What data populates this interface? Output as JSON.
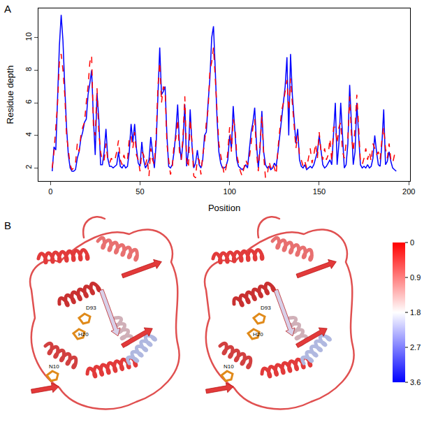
{
  "panel_labels": [
    "A",
    "B"
  ],
  "chart_data": {
    "type": "line",
    "x_label": "Position",
    "y_label": "Residue depth",
    "x": [
      1,
      2,
      3,
      4,
      5,
      6,
      7,
      8,
      9,
      10,
      11,
      12,
      13,
      14,
      15,
      16,
      17,
      18,
      19,
      20,
      21,
      22,
      23,
      24,
      25,
      26,
      27,
      28,
      29,
      30,
      31,
      32,
      33,
      34,
      35,
      36,
      37,
      38,
      39,
      40,
      41,
      42,
      43,
      44,
      45,
      46,
      47,
      48,
      49,
      50,
      51,
      52,
      53,
      54,
      55,
      56,
      57,
      58,
      59,
      60,
      61,
      62,
      63,
      64,
      65,
      66,
      67,
      68,
      69,
      70,
      71,
      72,
      73,
      74,
      75,
      76,
      77,
      78,
      79,
      80,
      81,
      82,
      83,
      84,
      85,
      86,
      87,
      88,
      89,
      90,
      91,
      92,
      93,
      94,
      95,
      96,
      97,
      98,
      99,
      100,
      101,
      102,
      103,
      104,
      105,
      106,
      107,
      108,
      109,
      110,
      111,
      112,
      113,
      114,
      115,
      116,
      117,
      118,
      119,
      120,
      121,
      122,
      123,
      124,
      125,
      126,
      127,
      128,
      129,
      130,
      131,
      132,
      133,
      134,
      135,
      136,
      137,
      138,
      139,
      140,
      141,
      142,
      143,
      144,
      145,
      146,
      147,
      148,
      149,
      150,
      151,
      152,
      153,
      154,
      155,
      156,
      157,
      158,
      159,
      160,
      161,
      162,
      163,
      164,
      165,
      166,
      167,
      168,
      169,
      170,
      171,
      172,
      173,
      174,
      175,
      176,
      177,
      178,
      179,
      180,
      181,
      182,
      183,
      184,
      185,
      186,
      187,
      188,
      189,
      190,
      191,
      192,
      193
    ],
    "series": [
      {
        "color": "#0000ff",
        "line_style": "solid",
        "values": [
          1.8,
          3.3,
          3.1,
          6.5,
          9.5,
          11.4,
          9.8,
          7.0,
          4.5,
          2.8,
          2.0,
          1.8,
          1.8,
          1.9,
          2.6,
          3.0,
          3.8,
          4.2,
          4.8,
          5.0,
          6.5,
          7.2,
          8.0,
          5.0,
          2.8,
          6.6,
          5.0,
          2.2,
          2.2,
          3.0,
          4.4,
          2.6,
          2.1,
          2.1,
          2.0,
          2.1,
          2.2,
          3.0,
          2.1,
          2.0,
          2.2,
          2.0,
          2.1,
          3.0,
          4.7,
          3.6,
          4.7,
          3.2,
          2.3,
          2.1,
          3.6,
          2.5,
          2.0,
          2.2,
          2.5,
          3.9,
          2.8,
          2.0,
          3.5,
          6.5,
          9.4,
          6.5,
          6.7,
          7.0,
          4.0,
          2.1,
          2.0,
          2.2,
          3.0,
          4.2,
          5.9,
          3.5,
          2.5,
          3.6,
          5.9,
          2.1,
          3.0,
          5.6,
          3.4,
          2.0,
          2.3,
          3.1,
          2.2,
          2.0,
          2.5,
          4.0,
          4.2,
          6.0,
          7.5,
          10.0,
          10.7,
          8.0,
          5.0,
          3.0,
          2.3,
          2.0,
          2.0,
          2.1,
          2.5,
          4.0,
          3.2,
          5.8,
          4.1,
          2.5,
          2.1,
          2.0,
          1.9,
          2.0,
          2.2,
          2.0,
          3.0,
          4.2,
          4.8,
          5.7,
          3.5,
          2.0,
          3.2,
          5.5,
          3.0,
          2.2,
          2.0,
          2.1,
          1.9,
          2.0,
          2.3,
          2.1,
          3.0,
          4.0,
          5.0,
          6.0,
          7.0,
          8.8,
          4.0,
          9.0,
          6.5,
          5.0,
          3.5,
          4.4,
          2.5,
          2.1,
          2.0,
          2.2,
          1.9,
          2.0,
          2.1,
          2.0,
          2.2,
          2.6,
          3.0,
          4.0,
          3.2,
          2.2,
          2.0,
          2.1,
          2.3,
          2.5,
          2.2,
          4.0,
          6.0,
          2.2,
          3.5,
          6.0,
          3.8,
          2.0,
          2.2,
          3.5,
          7.1,
          4.5,
          2.2,
          3.0,
          6.0,
          4.0,
          2.2,
          2.0,
          2.1,
          2.0,
          2.2,
          2.0,
          2.1,
          2.6,
          4.0,
          3.0,
          2.2,
          2.1,
          3.5,
          5.6,
          2.2,
          2.4,
          3.0,
          2.4,
          2.0,
          1.9,
          1.8
        ]
      },
      {
        "color": "#ff0000",
        "line_style": "dashed",
        "values": [
          2.0,
          3.0,
          4.5,
          6.0,
          8.5,
          9.0,
          8.0,
          6.5,
          4.0,
          3.0,
          2.2,
          1.9,
          2.0,
          2.3,
          3.5,
          3.0,
          4.0,
          4.5,
          4.8,
          6.0,
          7.0,
          8.5,
          8.9,
          4.5,
          4.0,
          6.9,
          4.2,
          3.0,
          2.4,
          2.5,
          3.5,
          2.5,
          2.3,
          2.6,
          2.4,
          2.5,
          3.0,
          3.7,
          2.5,
          2.2,
          2.8,
          2.4,
          2.5,
          3.8,
          4.0,
          3.2,
          4.2,
          2.8,
          2.5,
          1.8,
          3.0,
          2.8,
          2.2,
          2.6,
          1.5,
          3.2,
          2.5,
          2.2,
          4.0,
          7.0,
          8.5,
          6.0,
          7.0,
          6.8,
          3.5,
          2.5,
          1.6,
          2.0,
          3.5,
          3.8,
          5.0,
          3.0,
          2.5,
          4.0,
          6.4,
          2.5,
          2.0,
          5.0,
          3.6,
          1.5,
          1.4,
          2.6,
          2.5,
          1.6,
          2.8,
          3.5,
          4.8,
          5.6,
          8.0,
          8.5,
          9.4,
          7.5,
          5.4,
          3.5,
          2.8,
          2.2,
          1.6,
          2.0,
          3.0,
          4.5,
          3.0,
          5.0,
          4.5,
          2.8,
          2.3,
          1.8,
          1.5,
          2.0,
          2.5,
          2.2,
          2.6,
          3.5,
          4.5,
          5.0,
          3.0,
          1.8,
          3.5,
          5.2,
          2.8,
          1.4,
          1.5,
          2.4,
          2.0,
          2.3,
          2.0,
          1.6,
          3.2,
          4.5,
          5.5,
          6.0,
          6.8,
          7.4,
          5.5,
          7.5,
          6.0,
          4.5,
          3.2,
          4.0,
          2.8,
          2.5,
          2.1,
          2.4,
          2.0,
          2.6,
          3.2,
          2.3,
          2.8,
          3.5,
          2.6,
          4.2,
          3.0,
          2.5,
          3.2,
          2.5,
          2.8,
          3.8,
          2.4,
          4.5,
          4.5,
          3.5,
          4.5,
          4.8,
          3.0,
          2.6,
          3.5,
          3.8,
          6.4,
          4.0,
          3.0,
          4.5,
          6.5,
          4.5,
          2.4,
          2.2,
          2.6,
          3.2,
          2.5,
          3.0,
          2.4,
          3.5,
          3.2,
          2.8,
          3.0,
          2.5,
          3.8,
          4.5,
          3.2,
          2.6,
          3.5,
          2.5,
          2.3,
          2.8,
          2.6
        ]
      }
    ],
    "xlim": [
      -6.7,
      200.7
    ],
    "ylim": [
      1.2,
      11.8
    ],
    "xticks": [
      0,
      50,
      100,
      150,
      200
    ],
    "yticks": [
      2,
      4,
      6,
      8,
      10
    ],
    "grid": false
  },
  "structure_view": {
    "views": 2,
    "residue_labels": [
      "D93",
      "H20",
      "N10"
    ],
    "colorbar": {
      "range": [
        0,
        3.6
      ],
      "ticks": [
        0,
        0.9,
        1.8,
        2.7,
        3.6
      ],
      "colors": [
        "#ff0000",
        "#ffffff",
        "#0000ff"
      ]
    }
  }
}
